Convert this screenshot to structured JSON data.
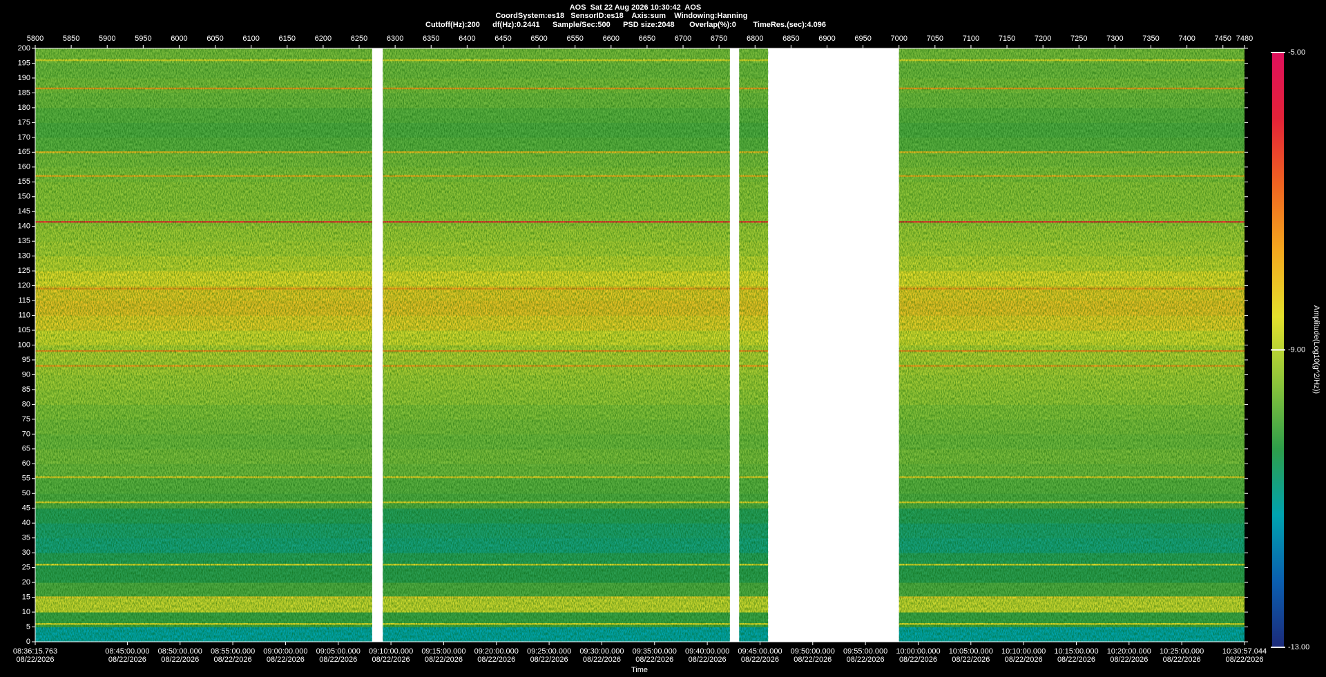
{
  "chart_data": {
    "type": "spectrogram",
    "title": "AOS  Sat 22 Aug 2026 10:30:42  AOS",
    "subtitles": [
      "CoordSystem:es18   SensorID:es18    Axis:sum    Windowing:Hanning",
      "Cuttoff(Hz):200      df(Hz):0.2441      Sample/Sec:500      PSD size:2048       Overlap(%):0        TimeRes.(sec):4.096"
    ],
    "xlabel": "Time",
    "colorbar_label": "Amplitude(Log10(g^2/Hz))",
    "x2lim": [
      5800,
      7480
    ],
    "x2ticks": [
      5800,
      5850,
      5900,
      5950,
      6000,
      6050,
      6100,
      6150,
      6200,
      6250,
      6300,
      6350,
      6400,
      6450,
      6500,
      6550,
      6600,
      6650,
      6700,
      6750,
      6800,
      6850,
      6900,
      6950,
      7000,
      7050,
      7100,
      7150,
      7200,
      7250,
      7300,
      7350,
      7400,
      7450,
      7480
    ],
    "xticks": [
      {
        "value": 5800,
        "label": "08:36:15.763"
      },
      {
        "value": 5927.99,
        "label": "08:45:00.000"
      },
      {
        "value": 6001.23,
        "label": "08:50:00.000"
      },
      {
        "value": 6074.48,
        "label": "08:55:00.000"
      },
      {
        "value": 6147.72,
        "label": "09:00:00.000"
      },
      {
        "value": 6220.96,
        "label": "09:05:00.000"
      },
      {
        "value": 6294.2,
        "label": "09:10:00.000"
      },
      {
        "value": 6367.45,
        "label": "09:15:00.000"
      },
      {
        "value": 6440.69,
        "label": "09:20:00.000"
      },
      {
        "value": 6513.93,
        "label": "09:25:00.000"
      },
      {
        "value": 6587.17,
        "label": "09:30:00.000"
      },
      {
        "value": 6660.41,
        "label": "09:35:00.000"
      },
      {
        "value": 6733.66,
        "label": "09:40:00.000"
      },
      {
        "value": 6806.9,
        "label": "09:45:00.000"
      },
      {
        "value": 6880.14,
        "label": "09:50:00.000"
      },
      {
        "value": 6953.38,
        "label": "09:55:00.000"
      },
      {
        "value": 7026.63,
        "label": "10:00:00.000"
      },
      {
        "value": 7099.87,
        "label": "10:05:00.000"
      },
      {
        "value": 7173.11,
        "label": "10:10:00.000"
      },
      {
        "value": 7246.35,
        "label": "10:15:00.000"
      },
      {
        "value": 7319.59,
        "label": "10:20:00.000"
      },
      {
        "value": 7392.84,
        "label": "10:25:00.000"
      },
      {
        "value": 7480,
        "label": "10:30:57.044"
      }
    ],
    "xtick_dates": [
      "08/22/2026",
      "08/22/2026",
      "08/22/2026",
      "08/22/2026",
      "08/22/2026",
      "08/22/2026",
      "08/22/2026",
      "08/22/2026",
      "08/22/2026",
      "08/22/2026",
      "08/22/2026",
      "08/22/2026",
      "08/22/2026",
      "08/22/2026",
      "08/22/2026",
      "08/22/2026",
      "08/22/2026",
      "08/22/2026",
      "08/22/2026",
      "08/22/2026",
      "08/22/2026",
      "08/22/2026",
      "08/22/2026"
    ],
    "ylim": [
      0,
      200
    ],
    "yticks": [
      0,
      5,
      10,
      15,
      20,
      25,
      30,
      35,
      40,
      45,
      50,
      55,
      60,
      65,
      70,
      75,
      80,
      85,
      90,
      95,
      100,
      105,
      110,
      115,
      120,
      125,
      130,
      135,
      140,
      145,
      150,
      155,
      160,
      165,
      170,
      175,
      180,
      185,
      190,
      195,
      200
    ],
    "zlim": [
      -13,
      -5
    ],
    "zticks": [
      {
        "value": -5,
        "label": "-5.00"
      },
      {
        "value": -9,
        "label": "-9.00"
      },
      {
        "value": -13,
        "label": "-13.00"
      }
    ],
    "colors": [
      "#1c2a7a",
      "#0a5fb0",
      "#00a3b0",
      "#2e9e4a",
      "#8cc43a",
      "#e4e02c",
      "#f4a81e",
      "#f06420",
      "#e42238",
      "#e0105c"
    ],
    "segments": [
      [
        5800,
        6268
      ],
      [
        6283,
        6765
      ],
      [
        6778,
        6818
      ],
      [
        7000,
        7480
      ]
    ],
    "bins": [
      0,
      5,
      10,
      15,
      20,
      25,
      30,
      35,
      40,
      45,
      50,
      55,
      60,
      65,
      70,
      75,
      80,
      85,
      90,
      95,
      100,
      105,
      110,
      115,
      120,
      125,
      130,
      135,
      140,
      145,
      150,
      155,
      160,
      165,
      170,
      175,
      180,
      185,
      190,
      195,
      200
    ],
    "profile": [
      -11.2,
      -10.2,
      -8.8,
      -10,
      -10.4,
      -10.5,
      -10.8,
      -10.7,
      -10.5,
      -10,
      -9.9,
      -9.7,
      -9.6,
      -9.7,
      -9.6,
      -9.5,
      -9.3,
      -9.2,
      -9.1,
      -9,
      -8.7,
      -8.3,
      -8.1,
      -8.2,
      -8.5,
      -8.9,
      -9.1,
      -9.2,
      -9.3,
      -9.4,
      -9.4,
      -9.5,
      -9.6,
      -9.9,
      -10,
      -9.9,
      -9.7,
      -9.6,
      -9.7,
      -9.6
    ],
    "lines": [
      {
        "freq": 141.5,
        "value": -6.2
      },
      {
        "freq": 186.5,
        "value": -7.5
      },
      {
        "freq": 196,
        "value": -8.5
      },
      {
        "freq": 165,
        "value": -8
      },
      {
        "freq": 157,
        "value": -7.8
      },
      {
        "freq": 119,
        "value": -7.5
      },
      {
        "freq": 98,
        "value": -7.3
      },
      {
        "freq": 93,
        "value": -7.5
      },
      {
        "freq": 55.5,
        "value": -8.3
      },
      {
        "freq": 47,
        "value": -8.4
      },
      {
        "freq": 26,
        "value": -8.5
      },
      {
        "freq": 15,
        "value": -8.3
      },
      {
        "freq": 6,
        "value": -8.5
      }
    ]
  }
}
